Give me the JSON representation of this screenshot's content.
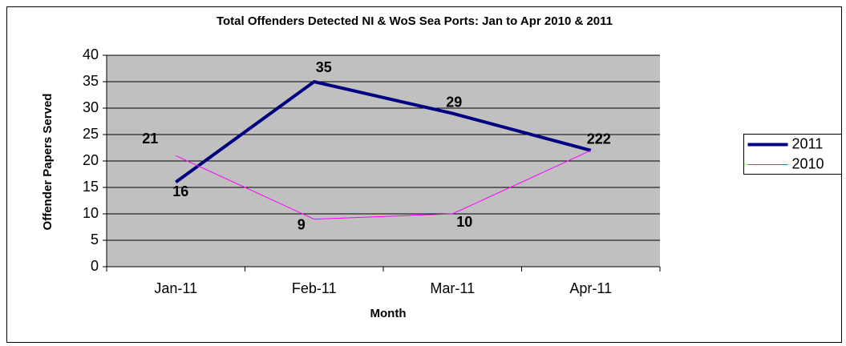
{
  "chart_data": {
    "type": "line",
    "title": "Total Offenders Detected NI & WoS Sea Ports: Jan to Apr 2010 & 2011",
    "x_label": "Month",
    "y_label": "Offender Papers Served",
    "categories": [
      "Jan-11",
      "Feb-11",
      "Mar-11",
      "Apr-11"
    ],
    "series": [
      {
        "name": "2011",
        "color": "#000080",
        "values": [
          16,
          35,
          29,
          22
        ]
      },
      {
        "name": "2010",
        "color": "#ff00ff",
        "values": [
          21,
          9,
          10,
          22
        ]
      }
    ],
    "ylim": [
      0,
      40
    ],
    "yticks": [
      0,
      5,
      10,
      15,
      20,
      25,
      30,
      35,
      40
    ],
    "grid": true,
    "legend": "right",
    "plot_background": "#c0c0c0",
    "data_labels": true
  }
}
